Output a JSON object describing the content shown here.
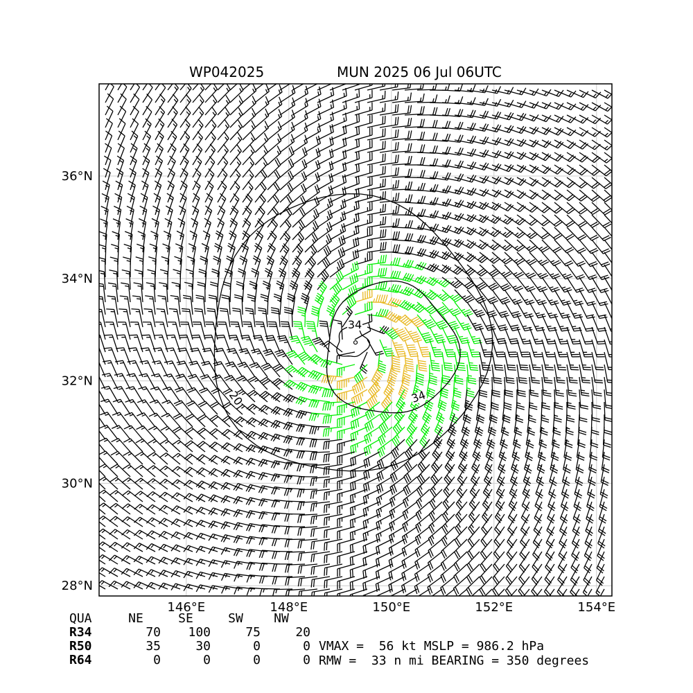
{
  "header": {
    "storm_id": "WP042025",
    "storm_time": "MUN 2025 06 Jul 06UTC"
  },
  "chart_data": {
    "type": "wind-barb-map",
    "lon_range": [
      144.3,
      154.3
    ],
    "lat_range": [
      27.8,
      37.8
    ],
    "x_ticks": [
      "146°E",
      "148°E",
      "150°E",
      "152°E",
      "154°E"
    ],
    "y_ticks": [
      "28°N",
      "30°N",
      "32°N",
      "34°N",
      "36°N"
    ],
    "grid": true,
    "center": {
      "lon": 149.3,
      "lat": 32.75
    },
    "vmax_kt": 56,
    "rmw_nmi": 33,
    "color_thresholds_kt": {
      "black_below": 34,
      "gold_from": 50
    },
    "colors": {
      "calm": "#000000",
      "gale": "#00ee00",
      "storm": "#e8b820",
      "grid": "#cccccc"
    },
    "contour_levels": [
      20,
      34
    ],
    "contour_labels": [
      "20",
      "34",
      "34"
    ]
  },
  "wind_radii": {
    "columns": [
      "QUA",
      "NE",
      "SE",
      "SW",
      "NW"
    ],
    "rows": [
      {
        "label": "R34",
        "values": [
          "70",
          "100",
          "75",
          "20"
        ]
      },
      {
        "label": "R50",
        "values": [
          "35",
          "30",
          "0",
          "0"
        ]
      },
      {
        "label": "R64",
        "values": [
          "0",
          "0",
          "0",
          "0"
        ]
      }
    ]
  },
  "summary": {
    "line1": "VMAX =  56 kt MSLP = 986.2 hPa",
    "line2": "RMW =  33 n mi BEARING = 350 degrees"
  }
}
